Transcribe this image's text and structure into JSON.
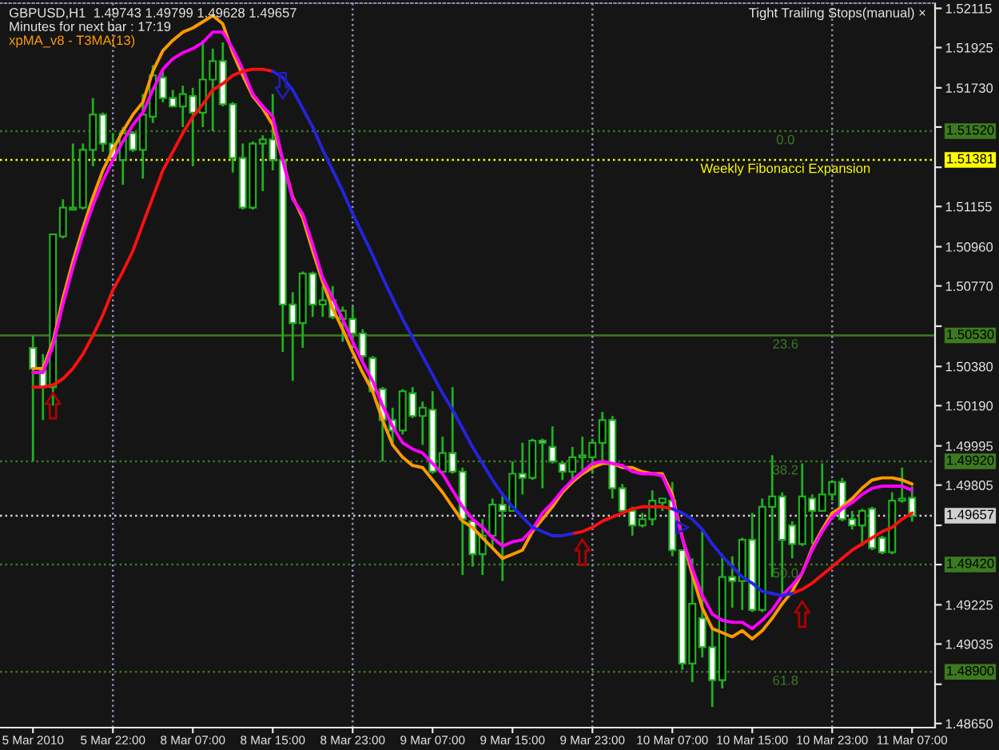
{
  "chart_data": {
    "type": "candlestick",
    "title": "GBPUSD,H1  1.49743 1.49799 1.49628 1.49657",
    "subtitle": "Minutes for next bar : 17:19",
    "categories": [
      "5 Mar 2010",
      null,
      null,
      null,
      null,
      null,
      null,
      null,
      "5 Mar 22:00",
      null,
      null,
      null,
      null,
      null,
      null,
      null,
      "8 Mar 07:00",
      null,
      null,
      null,
      null,
      null,
      null,
      null,
      "8 Mar 15:00",
      null,
      null,
      null,
      null,
      null,
      null,
      null,
      "8 Mar 23:00",
      null,
      null,
      null,
      null,
      null,
      null,
      null,
      "9 Mar 07:00",
      null,
      null,
      null,
      null,
      null,
      null,
      null,
      "9 Mar 15:00",
      null,
      null,
      null,
      null,
      null,
      null,
      null,
      "9 Mar 23:00",
      null,
      null,
      null,
      null,
      null,
      null,
      null,
      "10 Mar 07:00",
      null,
      null,
      null,
      null,
      null,
      null,
      null,
      "10 Mar 15:00",
      null,
      null,
      null,
      null,
      null,
      null,
      null,
      "10 Mar 23:00",
      null,
      null,
      null,
      null,
      null,
      null,
      null,
      "11 Mar 07:00"
    ],
    "ohlc": [
      [
        1.5047,
        1.5053,
        1.4992,
        1.5037
      ],
      [
        1.5036,
        1.5044,
        1.5012,
        1.5028
      ],
      [
        1.5028,
        1.5102,
        1.5019,
        1.5102
      ],
      [
        1.5101,
        1.5119,
        1.51,
        1.5115
      ],
      [
        1.5114,
        1.5146,
        1.5114,
        1.5115
      ],
      [
        1.5115,
        1.5146,
        1.5114,
        1.5143
      ],
      [
        1.5143,
        1.5168,
        1.5135,
        1.516
      ],
      [
        1.516,
        1.5161,
        1.5142,
        1.5146
      ],
      [
        1.5146,
        1.5151,
        1.5138,
        1.5139
      ],
      [
        1.5138,
        1.5154,
        1.5126,
        1.5151
      ],
      [
        1.5151,
        1.5152,
        1.5142,
        1.5143
      ],
      [
        1.5143,
        1.517,
        1.5129,
        1.516
      ],
      [
        1.5159,
        1.5184,
        1.5156,
        1.5179
      ],
      [
        1.5178,
        1.5182,
        1.5166,
        1.5168
      ],
      [
        1.5168,
        1.5172,
        1.5164,
        1.5164
      ],
      [
        1.5164,
        1.5174,
        1.5154,
        1.517
      ],
      [
        1.5169,
        1.5173,
        1.5135,
        1.5161
      ],
      [
        1.5161,
        1.5196,
        1.5154,
        1.5177
      ],
      [
        1.5177,
        1.5192,
        1.5152,
        1.5186
      ],
      [
        1.5186,
        1.5195,
        1.5164,
        1.5165
      ],
      [
        1.5165,
        1.5166,
        1.5132,
        1.5139
      ],
      [
        1.5139,
        1.5146,
        1.5114,
        1.5115
      ],
      [
        1.5115,
        1.5147,
        1.5114,
        1.5146
      ],
      [
        1.5146,
        1.515,
        1.5123,
        1.5148
      ],
      [
        1.5148,
        1.517,
        1.5133,
        1.5138
      ],
      [
        1.5138,
        1.5139,
        1.5045,
        1.5068
      ],
      [
        1.5068,
        1.5074,
        1.5031,
        1.5059
      ],
      [
        1.5059,
        1.5084,
        1.5047,
        1.5083
      ],
      [
        1.5083,
        1.5084,
        1.5062,
        1.5068
      ],
      [
        1.5068,
        1.5077,
        1.5062,
        1.507
      ],
      [
        1.507,
        1.5077,
        1.5061,
        1.5062
      ],
      [
        1.5061,
        1.5067,
        1.505,
        1.5065
      ],
      [
        1.5061,
        1.5067,
        1.5048,
        1.5054
      ],
      [
        1.5054,
        1.5056,
        1.504,
        1.5043
      ],
      [
        1.5042,
        1.5043,
        1.5025,
        1.5026
      ],
      [
        1.5027,
        1.5028,
        1.4992,
        1.5012
      ],
      [
        1.5012,
        1.5018,
        1.5001,
        1.5007
      ],
      [
        1.5007,
        1.5027,
        1.5005,
        1.5026
      ],
      [
        1.5025,
        1.5028,
        1.5013,
        1.5014
      ],
      [
        1.5014,
        1.5021,
        1.5,
        1.5018
      ],
      [
        1.5017,
        1.5026,
        1.4986,
        1.4987
      ],
      [
        1.4987,
        1.5004,
        1.4986,
        1.4996
      ],
      [
        1.4996,
        1.5028,
        1.4986,
        1.4987
      ],
      [
        1.4987,
        1.4989,
        1.4937,
        1.4964
      ],
      [
        1.4963,
        1.4964,
        1.4941,
        1.4947
      ],
      [
        1.4947,
        1.4964,
        1.4937,
        1.4956
      ],
      [
        1.4956,
        1.4974,
        1.495,
        1.4971
      ],
      [
        1.4971,
        1.4977,
        1.4934,
        1.4968
      ],
      [
        1.4968,
        1.4992,
        1.4968,
        1.4986
      ],
      [
        1.4986,
        1.5001,
        1.4976,
        1.4984
      ],
      [
        1.4984,
        1.5003,
        1.4983,
        1.5002
      ],
      [
        1.5002,
        1.5003,
        1.4979,
        1.5001
      ],
      [
        1.4999,
        1.5009,
        1.4991,
        1.4992
      ],
      [
        1.4991,
        1.4992,
        1.4983,
        1.4987
      ],
      [
        1.4987,
        1.4999,
        1.4983,
        1.4994
      ],
      [
        1.4994,
        1.5004,
        1.4986,
        1.4995
      ],
      [
        1.4994,
        1.5003,
        1.4986,
        1.5001
      ],
      [
        1.5001,
        1.5016,
        1.4992,
        1.5012
      ],
      [
        1.5012,
        1.5014,
        1.4974,
        1.4979
      ],
      [
        1.4979,
        1.4981,
        1.4968,
        1.4968
      ],
      [
        1.4968,
        1.497,
        1.4956,
        1.4961
      ],
      [
        1.4961,
        1.4967,
        1.496,
        1.4964
      ],
      [
        1.4964,
        1.4978,
        1.4961,
        1.4973
      ],
      [
        1.4972,
        1.4974,
        1.4968,
        1.4974
      ],
      [
        1.4973,
        1.4982,
        1.4946,
        1.4949
      ],
      [
        1.4949,
        1.4949,
        1.4891,
        1.4894
      ],
      [
        1.4894,
        1.4945,
        1.4885,
        1.4923
      ],
      [
        1.4916,
        1.4959,
        1.4897,
        1.4902
      ],
      [
        1.4902,
        1.4911,
        1.4873,
        1.4886
      ],
      [
        1.4886,
        1.4947,
        1.4882,
        1.4936
      ],
      [
        1.4936,
        1.4946,
        1.4921,
        1.4934
      ],
      [
        1.4934,
        1.4955,
        1.492,
        1.4954
      ],
      [
        1.4954,
        1.4967,
        1.4919,
        1.492
      ],
      [
        1.492,
        1.4974,
        1.4919,
        1.497
      ],
      [
        1.497,
        1.4995,
        1.4936,
        1.4975
      ],
      [
        1.4975,
        1.4977,
        1.4927,
        1.4954
      ],
      [
        1.4961,
        1.4963,
        1.4945,
        1.4952
      ],
      [
        1.4952,
        1.4991,
        1.4951,
        1.4975
      ],
      [
        1.4974,
        1.4976,
        1.4952,
        1.4968
      ],
      [
        1.4968,
        1.4991,
        1.4968,
        1.4976
      ],
      [
        1.4976,
        1.4983,
        1.4973,
        1.4982
      ],
      [
        1.4982,
        1.4984,
        1.4963,
        1.4964
      ],
      [
        1.4964,
        1.4968,
        1.4959,
        1.4961
      ],
      [
        1.4961,
        1.4969,
        1.4951,
        1.4968
      ],
      [
        1.4969,
        1.497,
        1.4949,
        1.495
      ],
      [
        1.4955,
        1.4956,
        1.4947,
        1.4948
      ],
      [
        1.4948,
        1.4977,
        1.4947,
        1.4973
      ],
      [
        1.4973,
        1.4989,
        1.4972,
        1.4974
      ],
      [
        1.49743,
        1.49799,
        1.49628,
        1.49657
      ]
    ],
    "color": "#20b020",
    "colors": [
      "#ffffff",
      "#ffffff",
      "#000000",
      "#000000",
      "#000000",
      "#000000",
      "#000000",
      "#ffffff",
      "#ffffff",
      "#000000",
      "#ffffff",
      "#000000",
      "#000000",
      "#ffffff",
      "#ffffff",
      "#000000",
      "#ffffff",
      "#000000",
      "#000000",
      "#ffffff",
      "#ffffff",
      "#ffffff",
      "#000000",
      "#000000",
      "#ffffff",
      "#ffffff",
      "#ffffff",
      "#000000",
      "#ffffff",
      "#000000",
      "#ffffff",
      "#000000",
      "#ffffff",
      "#ffffff",
      "#ffffff",
      "#ffffff",
      "#ffffff",
      "#000000",
      "#ffffff",
      "#000000",
      "#ffffff",
      "#000000",
      "#ffffff",
      "#ffffff",
      "#ffffff",
      "#000000",
      "#000000",
      "#ffffff",
      "#000000",
      "#ffffff",
      "#000000",
      "#ffffff",
      "#ffffff",
      "#ffffff",
      "#000000",
      "#000000",
      "#000000",
      "#000000",
      "#ffffff",
      "#ffffff",
      "#ffffff",
      "#000000",
      "#000000",
      "#000000",
      "#ffffff",
      "#ffffff",
      "#000000",
      "#ffffff",
      "#ffffff",
      "#000000",
      "#ffffff",
      "#000000",
      "#ffffff",
      "#000000",
      "#000000",
      "#ffffff",
      "#ffffff",
      "#000000",
      "#ffffff",
      "#000000",
      "#000000",
      "#ffffff",
      "#ffffff",
      "#000000",
      "#ffffff",
      "#ffffff",
      "#000000",
      "#000000",
      "#ffffff"
    ],
    "series": [
      {
        "type": "line",
        "name": "xpMA_v8 - T3MA(13)",
        "color": "#ff9a00",
        "values": [
          1.5037,
          1.5037,
          1.505,
          1.5071,
          1.5089,
          1.5105,
          1.512,
          1.5133,
          1.5143,
          1.5152,
          1.516,
          1.5166,
          1.5181,
          1.5191,
          1.5196,
          1.52,
          1.5202,
          1.5205,
          1.5208,
          1.5204,
          1.519,
          1.5179,
          1.5169,
          1.5163,
          1.5155,
          1.5138,
          1.512,
          1.511,
          1.5094,
          1.5079,
          1.5066,
          1.5056,
          1.5045,
          1.5035,
          1.5026,
          1.5012,
          1.5,
          1.4994,
          1.499,
          1.4989,
          1.4983,
          1.4977,
          1.497,
          1.4963,
          1.496,
          1.4955,
          1.495,
          1.4945,
          1.4947,
          1.4949,
          1.4958,
          1.4964,
          1.497,
          1.4977,
          1.4982,
          1.4986,
          1.4989,
          1.4991,
          1.4991,
          1.4989,
          1.4989,
          1.4987,
          1.4986,
          1.4986,
          1.4976,
          1.4955,
          1.4937,
          1.4921,
          1.4911,
          1.4909,
          1.4907,
          1.491,
          1.4906,
          1.491,
          1.4916,
          1.4923,
          1.4929,
          1.4938,
          1.495,
          1.4959,
          1.4967,
          1.497,
          1.4974,
          1.4979,
          1.4983,
          1.4984,
          1.4984,
          1.4983,
          1.4981
        ]
      },
      {
        "type": "line",
        "color": "#ff00ff",
        "values": [
          1.5035,
          1.5035,
          1.5048,
          1.5068,
          1.5086,
          1.5102,
          1.5116,
          1.5128,
          1.5138,
          1.5147,
          1.5155,
          1.5161,
          1.5172,
          1.5182,
          1.5187,
          1.519,
          1.5192,
          1.5195,
          1.52,
          1.52,
          1.5192,
          1.5182,
          1.517,
          1.5164,
          1.5159,
          1.5138,
          1.5119,
          1.5112,
          1.5097,
          1.5081,
          1.5071,
          1.5061,
          1.505,
          1.504,
          1.5031,
          1.5019,
          1.5009,
          1.5001,
          1.4998,
          1.4996,
          1.4991,
          1.4986,
          1.4978,
          1.497,
          1.4964,
          1.496,
          1.4955,
          1.4951,
          1.4953,
          1.4954,
          1.4959,
          1.4967,
          1.4972,
          1.4978,
          1.4983,
          1.4987,
          1.4991,
          1.4992,
          1.4991,
          1.499,
          1.4987,
          1.4986,
          1.4986,
          1.4985,
          1.4974,
          1.4955,
          1.494,
          1.4927,
          1.4918,
          1.4915,
          1.4914,
          1.4914,
          1.4911,
          1.4915,
          1.492,
          1.4927,
          1.4932,
          1.4938,
          1.4949,
          1.4958,
          1.4965,
          1.4969,
          1.4972,
          1.4976,
          1.4979,
          1.498,
          1.498,
          1.498,
          1.4978
        ]
      },
      {
        "type": "line",
        "color": "#ff1010",
        "values": [
          1.5028,
          1.5028,
          1.5029,
          1.5032,
          1.5037,
          1.5044,
          1.5053,
          1.5063,
          1.5075,
          1.5084,
          1.5094,
          1.5107,
          1.512,
          1.5133,
          1.5142,
          1.5151,
          1.5159,
          1.5165,
          1.5172,
          1.5175,
          1.5179,
          1.5181,
          1.5182,
          1.5182,
          1.5181,
          null,
          null,
          null,
          null,
          null,
          null,
          null,
          null,
          null,
          null,
          null,
          null,
          null,
          null,
          null,
          null,
          null,
          null,
          null,
          null,
          null,
          null,
          null,
          null,
          null,
          null,
          null,
          null,
          null,
          1.4957,
          1.4958,
          1.496,
          1.4963,
          1.4965,
          1.4967,
          1.4969,
          1.497,
          1.497,
          1.497,
          1.4969,
          null,
          null,
          null,
          null,
          null,
          null,
          null,
          null,
          null,
          null,
          null,
          1.4928,
          1.493,
          1.4933,
          1.4937,
          1.4941,
          1.4945,
          1.4949,
          1.4952,
          1.4955,
          1.4958,
          1.496,
          1.4964,
          1.4967
        ]
      },
      {
        "type": "line",
        "color": "#2424e0",
        "values": [
          null,
          null,
          null,
          null,
          null,
          null,
          null,
          null,
          null,
          null,
          null,
          null,
          null,
          null,
          null,
          null,
          null,
          null,
          null,
          null,
          null,
          null,
          null,
          null,
          1.5181,
          1.5178,
          1.5172,
          1.5163,
          1.5154,
          1.5143,
          1.5133,
          1.5123,
          1.5112,
          1.5102,
          1.5092,
          1.5081,
          1.5071,
          1.5061,
          1.5052,
          1.5043,
          1.5034,
          1.5025,
          1.5017,
          1.5008,
          1.4999,
          1.4991,
          1.4983,
          1.4976,
          1.497,
          1.4965,
          1.496,
          1.4958,
          1.4956,
          1.4956,
          1.4957,
          null,
          null,
          null,
          null,
          null,
          null,
          null,
          null,
          null,
          1.4969,
          1.4967,
          1.4964,
          1.4959,
          1.4952,
          1.4946,
          1.4941,
          1.4936,
          1.4933,
          1.4929,
          1.4928,
          1.4927,
          1.4928,
          null,
          null,
          null,
          null,
          null,
          null,
          null,
          null,
          null,
          null,
          null,
          null
        ]
      },
      {
        "type": "scatter",
        "color": "#b00000",
        "values": [
          null,
          null,
          1.5019,
          null,
          null,
          null,
          null,
          null,
          null,
          null,
          null,
          null,
          null,
          null,
          null,
          null,
          null,
          null,
          null,
          null,
          null,
          null,
          null,
          null,
          null,
          null,
          null,
          null,
          null,
          null,
          null,
          null,
          null,
          null,
          null,
          null,
          null,
          null,
          null,
          null,
          null,
          null,
          null,
          null,
          null,
          null,
          null,
          null,
          null,
          null,
          null,
          null,
          null,
          null,
          null,
          1.4948,
          null,
          null,
          null,
          null,
          null,
          null,
          null,
          null,
          null,
          null,
          null,
          null,
          null,
          null,
          null,
          null,
          null,
          null,
          null,
          null,
          null,
          1.4918,
          null,
          null,
          null,
          null,
          null,
          null,
          null,
          null,
          null,
          null,
          null
        ]
      },
      {
        "type": "scatter",
        "color": "#2020a8",
        "values": [
          null,
          null,
          null,
          null,
          null,
          null,
          null,
          null,
          null,
          null,
          null,
          null,
          null,
          null,
          null,
          null,
          null,
          null,
          null,
          null,
          null,
          null,
          null,
          null,
          null,
          1.5174,
          null,
          null,
          null,
          null,
          null,
          null,
          null,
          null,
          null,
          null,
          null,
          null,
          null,
          null,
          null,
          null,
          null,
          null,
          null,
          null,
          null,
          null,
          null,
          null,
          null,
          null,
          null,
          null,
          null,
          null,
          null,
          null,
          null,
          null,
          null,
          null,
          null,
          null,
          null,
          null,
          null,
          null,
          null,
          null,
          null,
          null,
          null,
          null,
          null,
          null,
          null,
          null,
          null,
          null,
          null,
          null,
          null,
          null,
          null,
          null,
          null,
          null,
          null
        ]
      },
      {
        "type": "scatter",
        "marker": "triangle",
        "color": "#2020c0",
        "values": [
          null,
          null,
          null,
          null,
          null,
          null,
          null,
          null,
          null,
          null,
          null,
          null,
          null,
          null,
          null,
          null,
          null,
          null,
          null,
          null,
          null,
          null,
          null,
          null,
          null,
          null,
          null,
          null,
          null,
          null,
          null,
          null,
          null,
          null,
          null,
          null,
          null,
          null,
          null,
          null,
          null,
          null,
          null,
          null,
          null,
          null,
          null,
          null,
          null,
          null,
          null,
          null,
          null,
          null,
          null,
          null,
          null,
          null,
          null,
          null,
          null,
          null,
          null,
          null,
          null,
          1.496,
          null,
          null,
          null,
          null,
          null,
          null,
          null,
          null,
          null,
          null,
          null,
          null,
          null,
          null,
          null,
          null,
          null,
          null,
          null,
          null,
          null,
          null,
          null
        ]
      }
    ],
    "ylim": [
      1.4863,
      1.5214
    ],
    "yticks": [
      {
        "value": 1.52115,
        "label": "1.52115"
      },
      {
        "value": 1.51925,
        "label": "1.51925"
      },
      {
        "value": 1.5173,
        "label": "1.51730"
      },
      {
        "value": 1.5154,
        "label": null
      },
      {
        "value": 1.51345,
        "label": null
      },
      {
        "value": 1.51155,
        "label": "1.51155"
      },
      {
        "value": 1.5096,
        "label": "1.50960"
      },
      {
        "value": 1.5077,
        "label": "1.50770"
      },
      {
        "value": 1.50575,
        "label": null
      },
      {
        "value": 1.5038,
        "label": "1.50380"
      },
      {
        "value": 1.5019,
        "label": "1.50190"
      },
      {
        "value": 1.49995,
        "label": "1.49995"
      },
      {
        "value": 1.49805,
        "label": "1.49805"
      },
      {
        "value": 1.4961,
        "label": null
      },
      {
        "value": 1.4942,
        "label": null
      },
      {
        "value": 1.49225,
        "label": "1.49225"
      },
      {
        "value": 1.49035,
        "label": "1.49035"
      },
      {
        "value": 1.4884,
        "label": null
      },
      {
        "value": 1.4865,
        "label": "1.48650"
      }
    ],
    "ref_lines": [
      {
        "axis": "y",
        "value": 1.5152,
        "label": "1.51520",
        "color": "#3c7a1e",
        "line_style": "dotted"
      },
      {
        "axis": "y",
        "value": 1.51381,
        "label": "1.51381",
        "color": "#ffff00",
        "line_style": "dotted"
      },
      {
        "axis": "y",
        "value": 1.5053,
        "label": "1.50530",
        "color": "#3c7a1e",
        "line_style": "solid"
      },
      {
        "axis": "y",
        "value": 1.4992,
        "label": "1.49920",
        "color": "#3c7a1e",
        "line_style": "dotted"
      },
      {
        "axis": "y",
        "value": 1.49657,
        "label": "1.49657",
        "color": "#d0d0d0",
        "line_style": "dotted"
      },
      {
        "axis": "y",
        "value": 1.4942,
        "label": "1.49420",
        "color": "#3c7a1e",
        "line_style": "dotted"
      },
      {
        "axis": "y",
        "value": 1.489,
        "label": "1.48900",
        "color": "#3c7a1e",
        "line_style": "dotted"
      },
      {
        "axis": "x",
        "value": "5 Mar 22:00",
        "color": "#8c8cb4",
        "line_style": "dotted"
      },
      {
        "axis": "x",
        "value": "8 Mar 23:00",
        "color": "#8c8cb4",
        "line_style": "dotted"
      },
      {
        "axis": "x",
        "value": "9 Mar 23:00",
        "color": "#8c8cb4",
        "line_style": "dotted"
      },
      {
        "axis": "x",
        "value": "10 Mar 23:00",
        "color": "#8c8cb4",
        "line_style": "dotted"
      }
    ],
    "annotations": [
      "Tight Trailing Stops(manual) ×",
      {
        "text": "0.0",
        "y": 1.5152
      },
      {
        "text": "Weekly Fibonacci Expansion",
        "y": 1.51381
      },
      {
        "text": "23.6",
        "y": 1.5053
      },
      {
        "text": "38.2",
        "y": 1.4992
      },
      {
        "text": "50.0",
        "y": 1.4942
      },
      {
        "text": "61.8",
        "y": 1.489
      }
    ]
  }
}
